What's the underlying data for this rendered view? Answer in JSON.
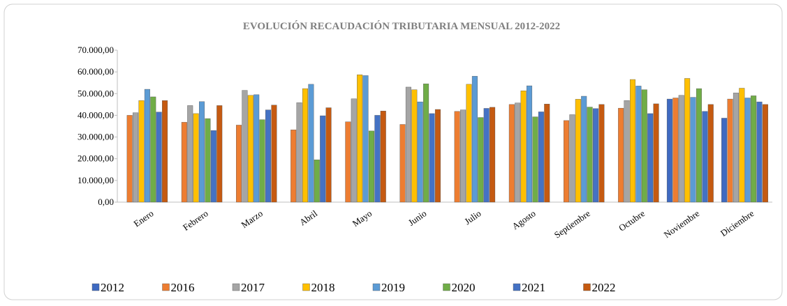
{
  "chart_data": {
    "type": "bar",
    "title": "EVOLUCIÓN RECAUDACIÓN TRIBUTARIA MENSUAL 2012-2022",
    "categories": [
      "Enero",
      "Febrero",
      "Marzo",
      "Abril",
      "Mayo",
      "Junio",
      "Julio",
      "Agosto",
      "Septiembre",
      "Octubre",
      "Noviembre",
      "Diciembre"
    ],
    "series": [
      {
        "name": "2012",
        "color": "#3f6ac1",
        "values": [
          null,
          null,
          null,
          null,
          null,
          null,
          null,
          null,
          null,
          null,
          47500,
          38700
        ]
      },
      {
        "name": "2016",
        "color": "#ed7d31",
        "values": [
          40000,
          36800,
          35500,
          33300,
          37000,
          35800,
          41800,
          45000,
          37600,
          43300,
          48000,
          47500
        ]
      },
      {
        "name": "2017",
        "color": "#a5a5a5",
        "values": [
          41200,
          44500,
          51500,
          45800,
          47600,
          53000,
          42500,
          45700,
          40300,
          46800,
          49200,
          50300
        ]
      },
      {
        "name": "2018",
        "color": "#ffc000",
        "values": [
          46800,
          40800,
          49200,
          52300,
          58700,
          51800,
          54300,
          51300,
          47400,
          56500,
          57000,
          52500
        ]
      },
      {
        "name": "2019",
        "color": "#5b9bd5",
        "values": [
          52000,
          46300,
          49500,
          54300,
          58300,
          46200,
          58000,
          53600,
          48800,
          53500,
          48300,
          48000
        ]
      },
      {
        "name": "2020",
        "color": "#70ad47",
        "values": [
          48500,
          38500,
          38000,
          19500,
          32800,
          54500,
          39000,
          39300,
          43800,
          51800,
          52300,
          49000
        ]
      },
      {
        "name": "2021",
        "color": "#4472c4",
        "values": [
          41500,
          33000,
          42500,
          39800,
          40000,
          40800,
          43200,
          41600,
          43100,
          40800,
          41800,
          46200
        ]
      },
      {
        "name": "2022",
        "color": "#c55a11",
        "values": [
          46800,
          44500,
          44700,
          43500,
          42000,
          42700,
          43700,
          45200,
          45000,
          45300,
          45000,
          45000
        ]
      }
    ],
    "ylim": [
      0,
      70000
    ],
    "yticks": [
      {
        "value": 0,
        "label": "0,00"
      },
      {
        "value": 10000,
        "label": "10.000,00"
      },
      {
        "value": 20000,
        "label": "20.000,00"
      },
      {
        "value": 30000,
        "label": "30.000,00"
      },
      {
        "value": 40000,
        "label": "40.000,00"
      },
      {
        "value": 50000,
        "label": "50.000,00"
      },
      {
        "value": 60000,
        "label": "60.000,00"
      },
      {
        "value": 70000,
        "label": "70.000,00"
      }
    ],
    "legend": "bottom"
  }
}
